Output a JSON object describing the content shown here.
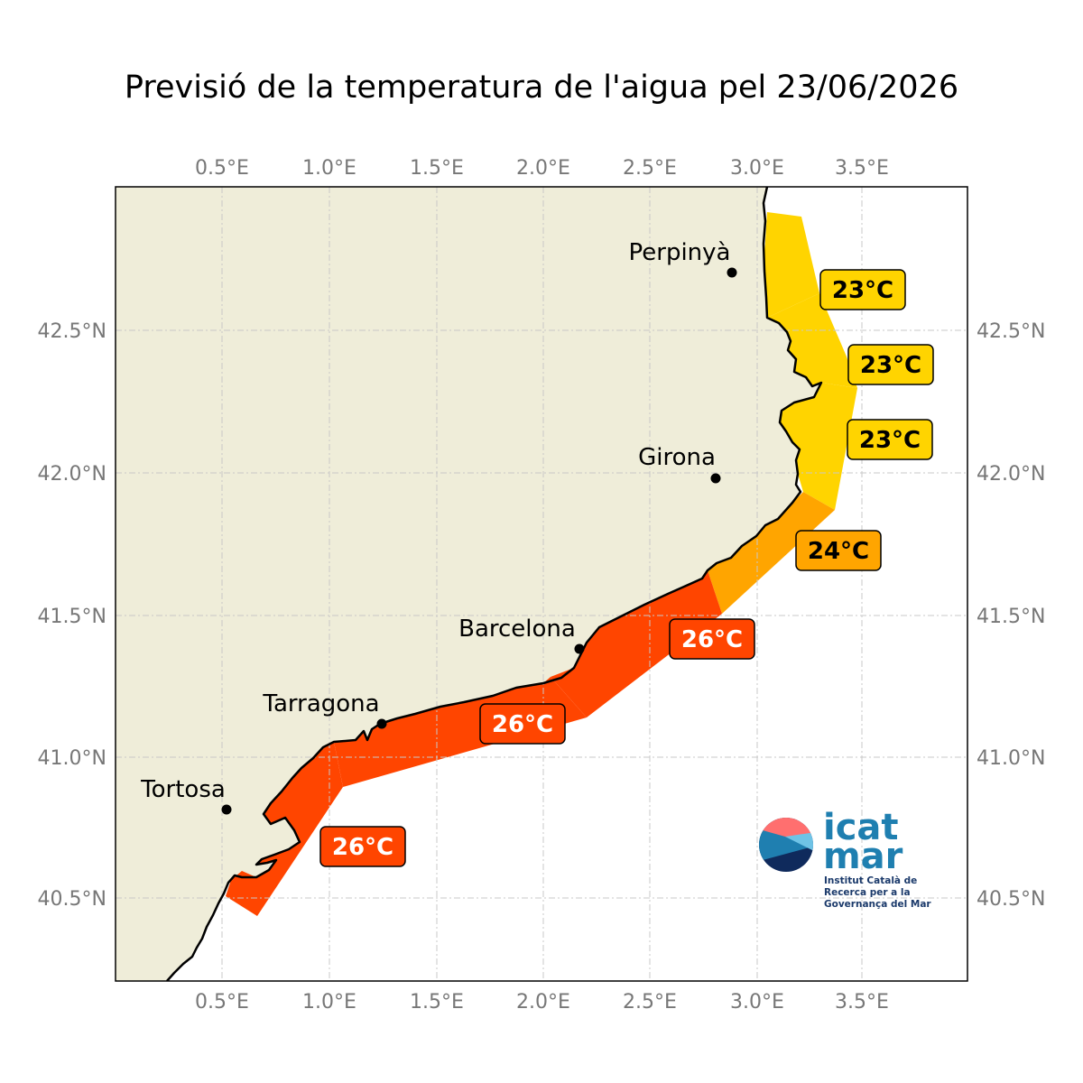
{
  "title": "Previsió de la temperatura de l'aigua pel 23/06/2026",
  "colors": {
    "land": "#efedd9",
    "sea": "#ffffff",
    "coast": "#000000",
    "grid": "#cccccc",
    "t23": "#ffd400",
    "t24": "#ffa500",
    "t26": "#ff4500"
  },
  "axes": {
    "lon_ticks": [
      "0.5°E",
      "1.0°E",
      "1.5°E",
      "2.0°E",
      "2.5°E",
      "3.0°E",
      "3.5°E"
    ],
    "lat_ticks": [
      "42.5°N",
      "42.0°N",
      "41.5°N",
      "41.0°N",
      "40.5°N"
    ]
  },
  "cities": [
    {
      "name": "Perpinyà"
    },
    {
      "name": "Girona"
    },
    {
      "name": "Barcelona"
    },
    {
      "name": "Tarragona"
    },
    {
      "name": "Tortosa"
    }
  ],
  "zones": [
    {
      "label": "23°C",
      "value": 23
    },
    {
      "label": "23°C",
      "value": 23
    },
    {
      "label": "23°C",
      "value": 23
    },
    {
      "label": "24°C",
      "value": 24
    },
    {
      "label": "26°C",
      "value": 26
    },
    {
      "label": "26°C",
      "value": 26
    },
    {
      "label": "26°C",
      "value": 26
    }
  ],
  "logo": {
    "line1": "icat",
    "line2": "mar",
    "subtitle": [
      "Institut Català de",
      "Recerca per a la",
      "Governança del Mar"
    ],
    "icon": "icatmar-logo-circle"
  }
}
